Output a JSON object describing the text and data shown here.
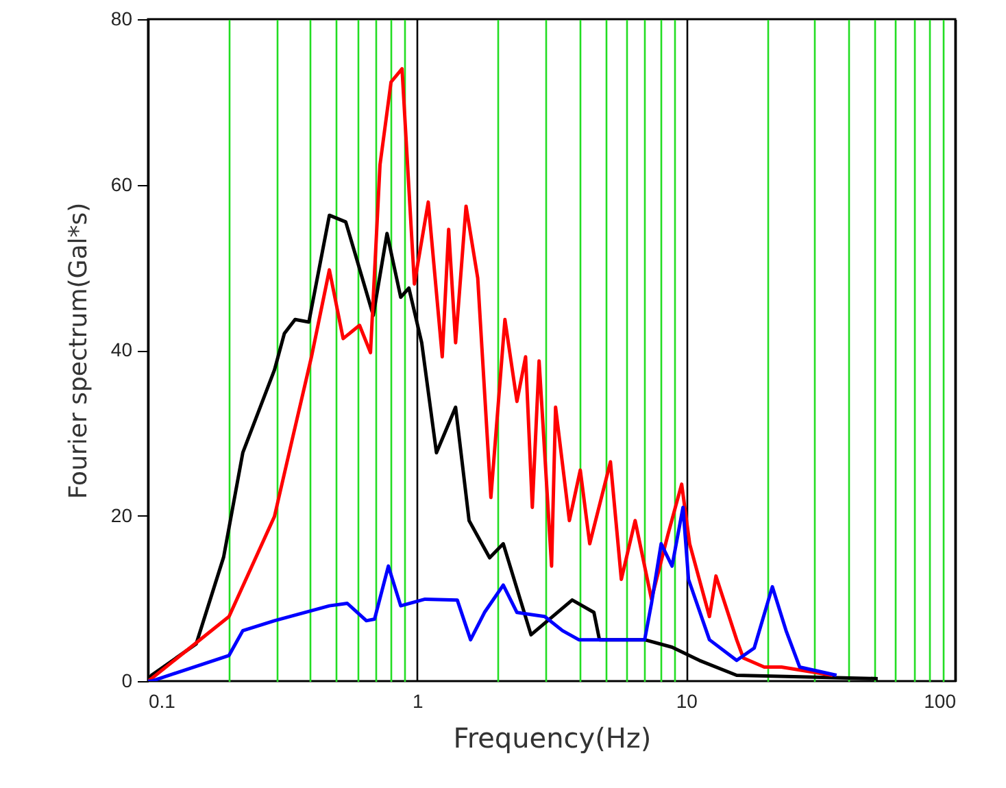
{
  "chart_data": {
    "type": "line",
    "xlabel": "Frequency(Hz)",
    "ylabel": "Fourier spectrum(Gal*s)",
    "log": "x",
    "grid": "x",
    "marker": "none",
    "line_style": "solid",
    "xlim": [
      0.1,
      100
    ],
    "ylim": [
      0,
      80
    ],
    "yticks": [
      0,
      20,
      40,
      60,
      80
    ],
    "xticks": [
      0.1,
      {
        "value": 0.2,
        "label": null
      },
      {
        "value": 0.3,
        "label": null
      },
      {
        "value": 0.4,
        "label": null
      },
      {
        "value": 0.5,
        "label": null
      },
      {
        "value": 0.6,
        "label": null
      },
      {
        "value": 0.7,
        "label": null
      },
      {
        "value": 0.8,
        "label": null
      },
      {
        "value": 0.9,
        "label": null
      },
      1,
      {
        "value": 2,
        "label": null
      },
      {
        "value": 3,
        "label": null
      },
      {
        "value": 4,
        "label": null
      },
      {
        "value": 5,
        "label": null
      },
      {
        "value": 6,
        "label": null
      },
      {
        "value": 7,
        "label": null
      },
      {
        "value": 8,
        "label": null
      },
      {
        "value": 9,
        "label": null
      },
      10,
      {
        "value": 20,
        "label": null
      },
      {
        "value": 30,
        "label": null
      },
      {
        "value": 40,
        "label": null
      },
      {
        "value": 50,
        "label": null
      },
      {
        "value": 60,
        "label": null
      },
      {
        "value": 70,
        "label": null
      },
      {
        "value": 80,
        "label": null
      },
      {
        "value": 90,
        "label": null
      },
      100
    ],
    "series": [
      {
        "color": "#000000",
        "x": [
          0.1,
          0.103,
          0.151,
          0.191,
          0.225,
          0.295,
          0.321,
          0.352,
          0.396,
          0.472,
          0.543,
          0.687,
          0.773,
          0.869,
          0.932,
          1.04,
          1.18,
          1.39,
          1.56,
          1.86,
          2.09,
          2.65,
          3.77,
          4.54,
          4.76,
          7.01,
          8.86,
          11.2,
          15.4,
          51.5
        ],
        "values": [
          0,
          0.7,
          4.5,
          15,
          27.6,
          37.6,
          42,
          43.7,
          43.4,
          56.3,
          55.5,
          44.2,
          54.1,
          46.4,
          47.5,
          40.9,
          27.6,
          33.1,
          19.4,
          14.9,
          16.6,
          5.6,
          9.8,
          8.3,
          5,
          5,
          4.1,
          2.5,
          0.7,
          0.3
        ]
      },
      {
        "color": "#ff0000",
        "x": [
          0.1,
          0.103,
          0.2,
          0.295,
          0.344,
          0.405,
          0.472,
          0.531,
          0.611,
          0.671,
          0.728,
          0.8,
          0.879,
          0.977,
          1.1,
          1.24,
          1.31,
          1.39,
          1.52,
          1.68,
          1.88,
          2.12,
          2.35,
          2.53,
          2.68,
          2.84,
          3.16,
          3.27,
          3.68,
          4.04,
          4.38,
          5.23,
          5.74,
          6.46,
          7.43,
          8.55,
          9.62,
          10.3,
          12.2,
          12.9,
          15.4,
          16.3,
          19.5,
          22.6,
          35.0
        ],
        "values": [
          0,
          0.3,
          7.8,
          19.9,
          29.3,
          39.2,
          49.7,
          41.4,
          43,
          39.7,
          62.4,
          72.4,
          74,
          48,
          57.9,
          39.2,
          54.6,
          40.9,
          57.4,
          48.7,
          22.2,
          43.7,
          33.8,
          39.2,
          21,
          38.7,
          13.9,
          33.1,
          19.4,
          25.5,
          16.6,
          26.5,
          12.3,
          19.4,
          9.9,
          17.7,
          23.8,
          16.6,
          7.8,
          12.7,
          5,
          2.8,
          1.7,
          1.7,
          0.7
        ]
      },
      {
        "color": "#0000ff",
        "x": [
          0.1,
          0.103,
          0.2,
          0.225,
          0.295,
          0.472,
          0.55,
          0.648,
          0.695,
          0.782,
          0.869,
          1.07,
          1.41,
          1.58,
          1.78,
          2.09,
          2.35,
          2.98,
          3.47,
          3.99,
          4.76,
          7.01,
          7.43,
          8.07,
          8.86,
          9.73,
          10.2,
          12.2,
          15.4,
          17.9,
          20.9,
          23.5,
          26.4,
          36.2
        ],
        "values": [
          0,
          0,
          3.1,
          6.1,
          7.3,
          9.1,
          9.4,
          7.3,
          7.5,
          13.9,
          9.1,
          9.9,
          9.8,
          5,
          8.3,
          11.6,
          8.3,
          7.8,
          6.1,
          5,
          5,
          5,
          9.4,
          16.6,
          13.9,
          21,
          12.3,
          5,
          2.5,
          4,
          11.4,
          6.1,
          1.7,
          0.7
        ]
      }
    ]
  }
}
